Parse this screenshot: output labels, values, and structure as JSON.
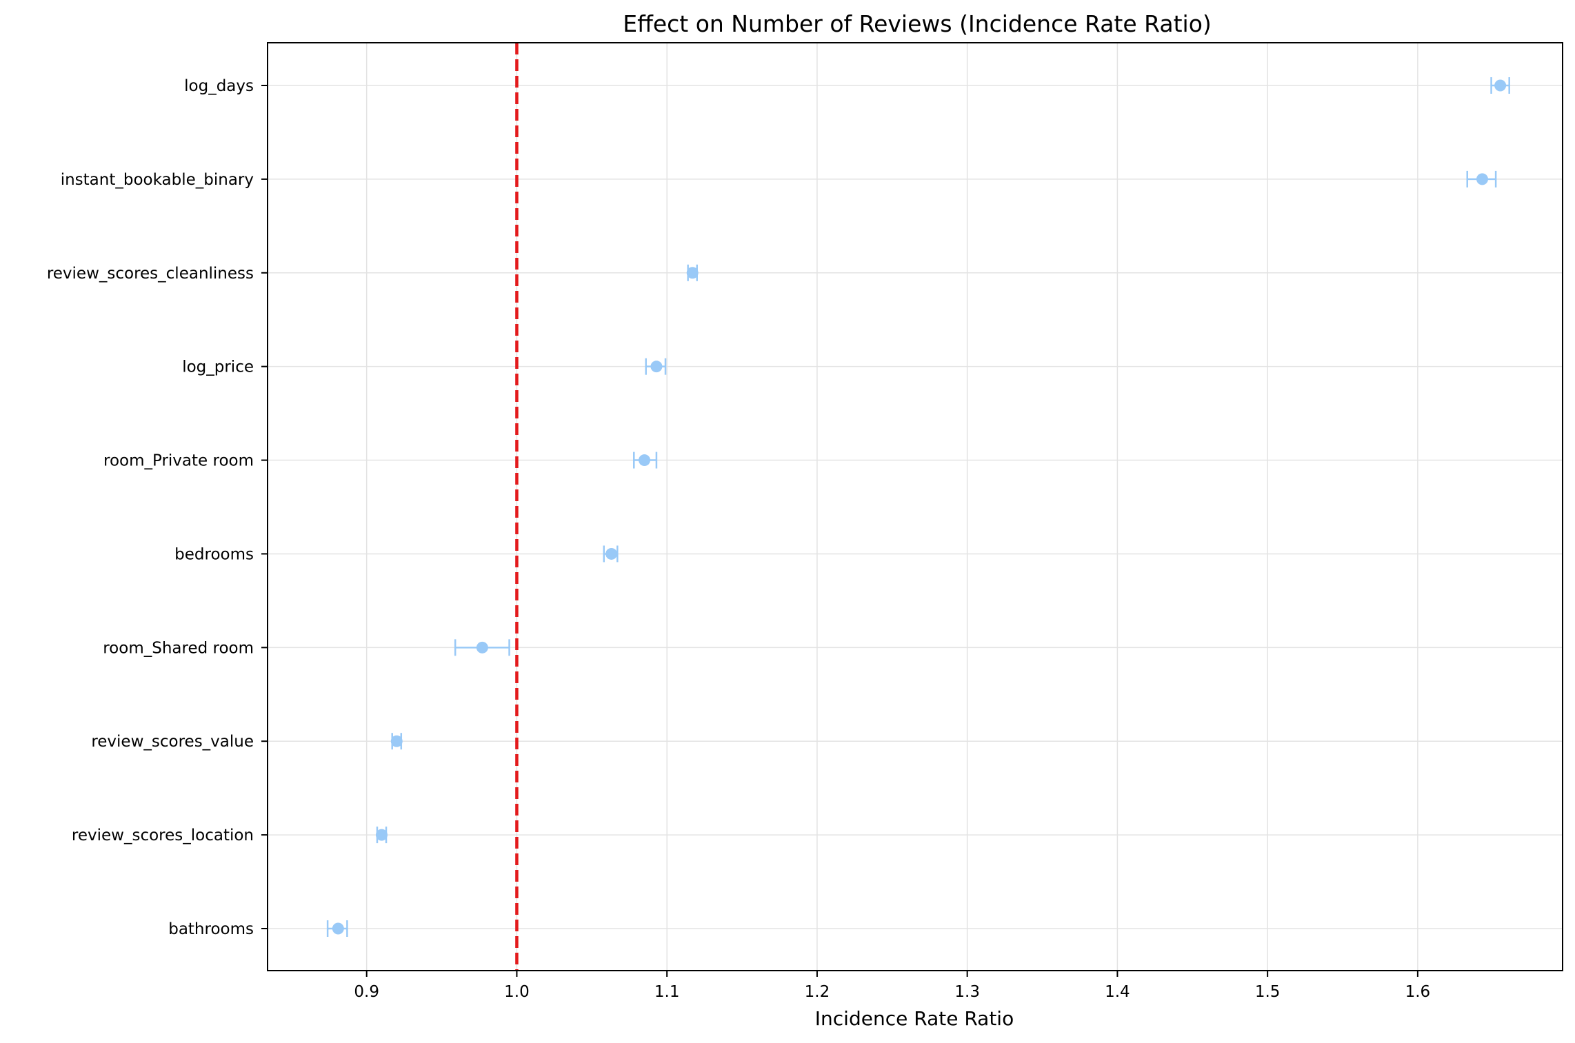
{
  "chart_data": {
    "type": "scatter",
    "title": "Effect on Number of Reviews (Incidence Rate Ratio)",
    "xlabel": "Incidence Rate Ratio",
    "ylabel": "",
    "xlim": [
      0.834,
      1.6965
    ],
    "x_ticks": [
      "0.9",
      "1.0",
      "1.1",
      "1.2",
      "1.3",
      "1.4",
      "1.5",
      "1.6"
    ],
    "grid": true,
    "legend": "none",
    "reference_line": {
      "x": 1.0,
      "style": "dashed",
      "color": "#e31a1c"
    },
    "marker_color": "#99c9f7",
    "points": [
      {
        "label": "log_days",
        "irr": 1.655,
        "ci_low": 1.649,
        "ci_high": 1.661
      },
      {
        "label": "instant_bookable_binary",
        "irr": 1.643,
        "ci_low": 1.633,
        "ci_high": 1.652
      },
      {
        "label": "review_scores_cleanliness",
        "irr": 1.117,
        "ci_low": 1.114,
        "ci_high": 1.12
      },
      {
        "label": "log_price",
        "irr": 1.093,
        "ci_low": 1.086,
        "ci_high": 1.099
      },
      {
        "label": "room_Private room",
        "irr": 1.085,
        "ci_low": 1.078,
        "ci_high": 1.093
      },
      {
        "label": "bedrooms",
        "irr": 1.063,
        "ci_low": 1.058,
        "ci_high": 1.067
      },
      {
        "label": "room_Shared room",
        "irr": 0.977,
        "ci_low": 0.959,
        "ci_high": 0.995
      },
      {
        "label": "review_scores_value",
        "irr": 0.92,
        "ci_low": 0.917,
        "ci_high": 0.923
      },
      {
        "label": "review_scores_location",
        "irr": 0.91,
        "ci_low": 0.907,
        "ci_high": 0.913
      },
      {
        "label": "bathrooms",
        "irr": 0.881,
        "ci_low": 0.874,
        "ci_high": 0.887
      }
    ]
  }
}
